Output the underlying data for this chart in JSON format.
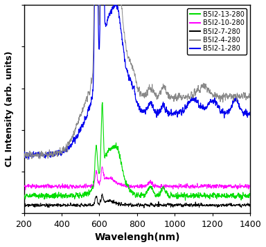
{
  "xlabel": "Wavelengh(nm)",
  "ylabel": "CL Intensity (arb. units)",
  "xlim": [
    200,
    1400
  ],
  "x_ticks": [
    200,
    400,
    600,
    800,
    1000,
    1200,
    1400
  ],
  "legend_labels": [
    "B5I2-13-280",
    "B5I2-10-280",
    "B5I2-7-280",
    "B5I2-4-280",
    "B5I2-1-280"
  ],
  "legend_colors": [
    "#00dd00",
    "#ff00ff",
    "#000000",
    "#888888",
    "#0000ee"
  ],
  "background": "#ffffff",
  "ylim": [
    0,
    1.0
  ]
}
